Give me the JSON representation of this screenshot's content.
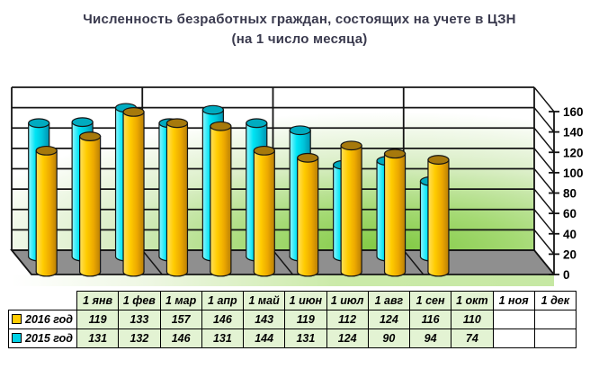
{
  "title": {
    "line1": "Численность безработных граждан, состоящих на учете в ЦЗН",
    "line2": "(на 1 число месяца)"
  },
  "chart_data": {
    "type": "bar",
    "subtype": "3d-cylinder",
    "title": "Численность безработных граждан, состоящих на учете в ЦЗН (на 1 число месяца)",
    "categories": [
      "1 янв",
      "1 фев",
      "1 мар",
      "1 апр",
      "1 май",
      "1 июн",
      "1 июл",
      "1 авг",
      "1 сен",
      "1 окт",
      "1 ноя",
      "1 дек"
    ],
    "series": [
      {
        "name": "2016 год",
        "values": [
          119,
          133,
          157,
          146,
          143,
          119,
          112,
          124,
          116,
          110,
          null,
          null
        ],
        "color": "#FFCC00",
        "top_color": "#A6790C",
        "gradient": [
          "#FFDF5E",
          "#FFCC00",
          "#EDA900",
          "#B97F06"
        ]
      },
      {
        "name": "2015 год",
        "values": [
          131,
          132,
          146,
          131,
          144,
          131,
          124,
          90,
          94,
          74,
          null,
          null
        ],
        "color": "#00D2E6",
        "top_color": "#00ABC0",
        "gradient": [
          "#8FF6FF",
          "#00E4F4",
          "#00C4DA",
          "#0092B0"
        ]
      }
    ],
    "ylim": [
      0,
      160
    ],
    "ytick_step": 20,
    "yticks": [
      "0",
      "20",
      "40",
      "60",
      "80",
      "100",
      "120",
      "140",
      "160"
    ],
    "grid": true,
    "legend_position": "table-left",
    "wall_colors": [
      "#7FC840",
      "#FFFFFF"
    ],
    "floor_color": "#8F8F8F"
  },
  "table": {
    "corner": "",
    "columns": [
      "1 янв",
      "1 фев",
      "1 мар",
      "1 апр",
      "1 май",
      "1 июн",
      "1 июл",
      "1 авг",
      "1 сен",
      "1 окт",
      "1 ноя",
      "1 дек"
    ],
    "filled_columns": 10,
    "rows": [
      {
        "label": "2016 год",
        "key_color": "#FFCC00",
        "values": [
          "119",
          "133",
          "157",
          "146",
          "143",
          "119",
          "112",
          "124",
          "116",
          "110",
          "",
          ""
        ]
      },
      {
        "label": "2015 год",
        "key_color": "#00D2E6",
        "values": [
          "131",
          "132",
          "146",
          "131",
          "144",
          "131",
          "124",
          "90",
          "94",
          "74",
          "",
          ""
        ]
      }
    ],
    "filled_cell_color": "#E3F3D3",
    "empty_cell_color": "#FFFFFF"
  }
}
